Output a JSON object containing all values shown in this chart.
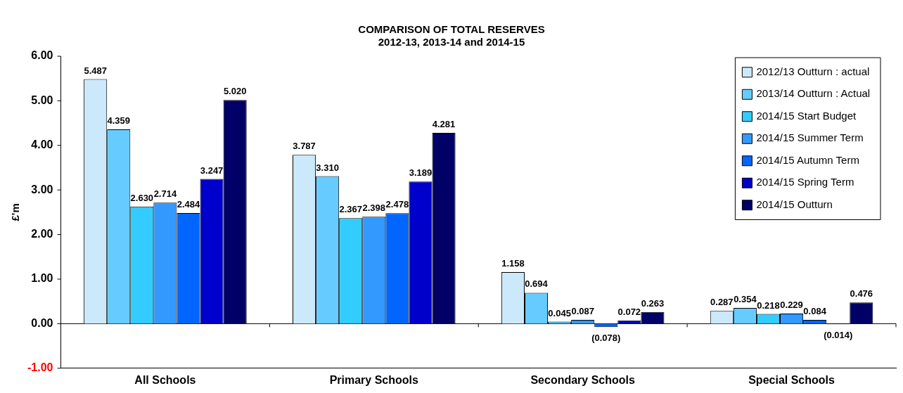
{
  "chart_data": {
    "type": "bar",
    "title": "COMPARISON OF TOTAL RESERVES",
    "subtitle": "2012-13, 2013-14 and 2014-15",
    "ylabel": "£'m",
    "categories": [
      "All Schools",
      "Primary Schools",
      "Secondary Schools",
      "Special Schools"
    ],
    "series": [
      {
        "name": "2012/13 Outturn : actual",
        "color": "#cce9fc",
        "values": [
          5.487,
          3.787,
          1.158,
          0.287
        ],
        "value_labels": [
          "5.487",
          "3.787",
          "1.158",
          "0.287"
        ]
      },
      {
        "name": "2013/14 Outturn : Actual",
        "color": "#66ccff",
        "values": [
          4.359,
          3.31,
          0.694,
          0.354
        ],
        "value_labels": [
          "4.359",
          "3.310",
          "0.694",
          "0.354"
        ]
      },
      {
        "name": "2014/15 Start Budget",
        "color": "#33ccff",
        "values": [
          2.63,
          2.367,
          0.045,
          0.218
        ],
        "value_labels": [
          "2.630",
          "2.367",
          "0.045",
          "0.218"
        ]
      },
      {
        "name": "2014/15 Summer Term",
        "color": "#3399ff",
        "values": [
          2.714,
          2.398,
          0.087,
          0.229
        ],
        "value_labels": [
          "2.714",
          "2.398",
          "0.087",
          "0.229"
        ]
      },
      {
        "name": "2014/15 Autumn Term",
        "color": "#0066ff",
        "values": [
          2.484,
          2.478,
          -0.078,
          0.084
        ],
        "value_labels": [
          "2.484",
          "2.478",
          "(0.078)",
          "0.084"
        ]
      },
      {
        "name": "2014/15 Spring Term",
        "color": "#0000cc",
        "values": [
          3.247,
          3.189,
          0.072,
          -0.014
        ],
        "value_labels": [
          "3.247",
          "3.189",
          "0.072",
          "(0.014)"
        ]
      },
      {
        "name": "2014/15 Outturn",
        "color": "#000066",
        "values": [
          5.02,
          4.281,
          0.263,
          0.476
        ],
        "value_labels": [
          "5.020",
          "4.281",
          "0.263",
          "0.476"
        ]
      }
    ],
    "ylim": [
      -1,
      6
    ],
    "yticks": [
      {
        "value": -1,
        "label": "-1.00"
      },
      {
        "value": 0,
        "label": "0.00"
      },
      {
        "value": 1,
        "label": "1.00"
      },
      {
        "value": 2,
        "label": "2.00"
      },
      {
        "value": 3,
        "label": "3.00"
      },
      {
        "value": 4,
        "label": "4.00"
      },
      {
        "value": 5,
        "label": "5.00"
      },
      {
        "value": 6,
        "label": "6.00"
      }
    ],
    "legend": "top right"
  }
}
